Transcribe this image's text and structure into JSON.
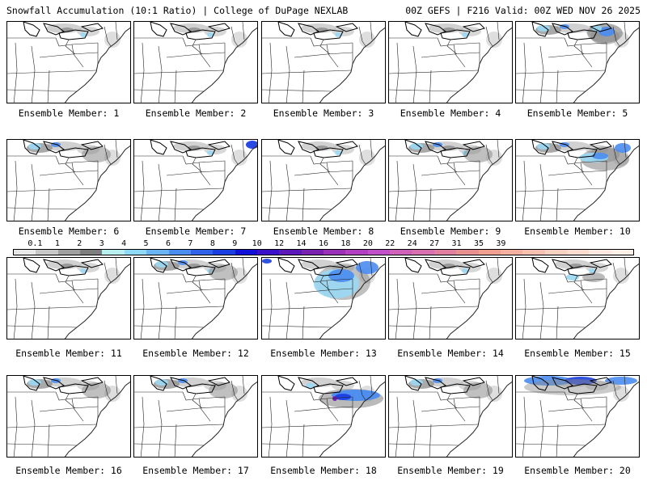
{
  "header": {
    "left": "Snowfall Accumulation (10:1 Ratio) | College of DuPage NEXLAB",
    "right": "00Z GEFS | F216 Valid: 00Z WED NOV 26 2025"
  },
  "panel_label_prefix": "Ensemble Member:",
  "members": [
    {
      "id": "1",
      "snow": "light"
    },
    {
      "id": "2",
      "snow": "light"
    },
    {
      "id": "3",
      "snow": "light"
    },
    {
      "id": "4",
      "snow": "light"
    },
    {
      "id": "5",
      "snow": "moderate-northeast"
    },
    {
      "id": "6",
      "snow": "moderate-lakes"
    },
    {
      "id": "7",
      "snow": "light-with-northeast-blue"
    },
    {
      "id": "8",
      "snow": "light"
    },
    {
      "id": "9",
      "snow": "light-lakes"
    },
    {
      "id": "10",
      "snow": "moderate-mid-atlantic"
    },
    {
      "id": "11",
      "snow": "light"
    },
    {
      "id": "12",
      "snow": "light-lakes"
    },
    {
      "id": "13",
      "snow": "heavy-mid-atlantic"
    },
    {
      "id": "14",
      "snow": "light"
    },
    {
      "id": "15",
      "snow": "light-northeast"
    },
    {
      "id": "16",
      "snow": "moderate-lakes"
    },
    {
      "id": "17",
      "snow": "moderate-lakes"
    },
    {
      "id": "18",
      "snow": "heavy-mid-atlantic-band"
    },
    {
      "id": "19",
      "snow": "moderate-lakes"
    },
    {
      "id": "20",
      "snow": "heavy-northern-band"
    }
  ],
  "colorbar": {
    "labels": [
      "0.1",
      "1",
      "2",
      "3",
      "4",
      "5",
      "6",
      "7",
      "8",
      "9",
      "10",
      "12",
      "14",
      "16",
      "18",
      "20",
      "22",
      "24",
      "27",
      "31",
      "35",
      "39"
    ],
    "colors": [
      "#e8e8e8",
      "#c8c8c8",
      "#a0a0a0",
      "#7e7e7e",
      "#b8f0f0",
      "#90d8f8",
      "#6ab4f4",
      "#4a8cf0",
      "#2f62e8",
      "#1a3ee0",
      "#1010d8",
      "#3a10c8",
      "#5a18b8",
      "#7a20b0",
      "#9a30b8",
      "#b040c0",
      "#c050c8",
      "#d060b8",
      "#d870b0",
      "#e080a0",
      "#e89090",
      "#f0a090",
      "#f4b0a0",
      "#f8c0b0",
      "#fad0c0",
      "#fcdcd0",
      "#fee8e0",
      "#fff0e8"
    ]
  },
  "colors": {
    "snow_light": "#bdbdbd",
    "snow_mid": "#8c8c8c",
    "snow_dark": "#5e5e5e",
    "snow_blue_light": "#9ad8f4",
    "snow_blue": "#4a8cf0",
    "snow_blue_dark": "#1c3fe0",
    "snow_purple": "#6a22b4"
  }
}
